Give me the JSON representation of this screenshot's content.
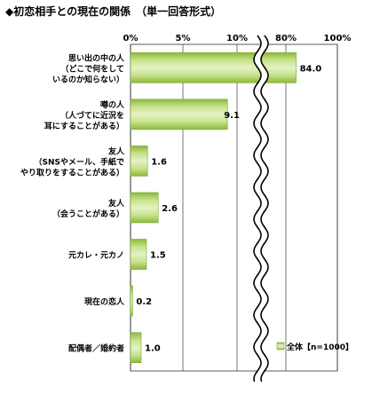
{
  "title": "◆初恋相手との現在の関係　（単一回答形式）",
  "chart_data": {
    "type": "bar",
    "orientation": "horizontal",
    "broken_axis": true,
    "x_ticks": [
      "0%",
      "5%",
      "10%",
      "80%",
      "100%"
    ],
    "categories": [
      [
        "思い出の中の人",
        "（どこで何をして",
        "いるのか知らない）"
      ],
      [
        "噂の人",
        "（人づてに近況を",
        "耳にすることがある）"
      ],
      [
        "友人",
        "（SNSやメール、手紙で",
        "やり取りをすることがある）"
      ],
      [
        "友人",
        "（会うことがある）"
      ],
      [
        "元カレ・元カノ"
      ],
      [
        "現在の恋人"
      ],
      [
        "配偶者／婚約者"
      ]
    ],
    "series": [
      {
        "name": "全体【n=1000】",
        "values": [
          84.0,
          9.1,
          1.6,
          2.6,
          1.5,
          0.2,
          1.0
        ]
      }
    ],
    "value_labels": [
      "84.0",
      "9.1",
      "1.6",
      "2.6",
      "1.5",
      "0.2",
      "1.0"
    ],
    "legend": {
      "label": "全体【n=1000】",
      "position": "bottom-right"
    },
    "colors": {
      "bar_light": "#dbeeb0",
      "bar_dark": "#8db83a",
      "grid": "#333333"
    }
  }
}
